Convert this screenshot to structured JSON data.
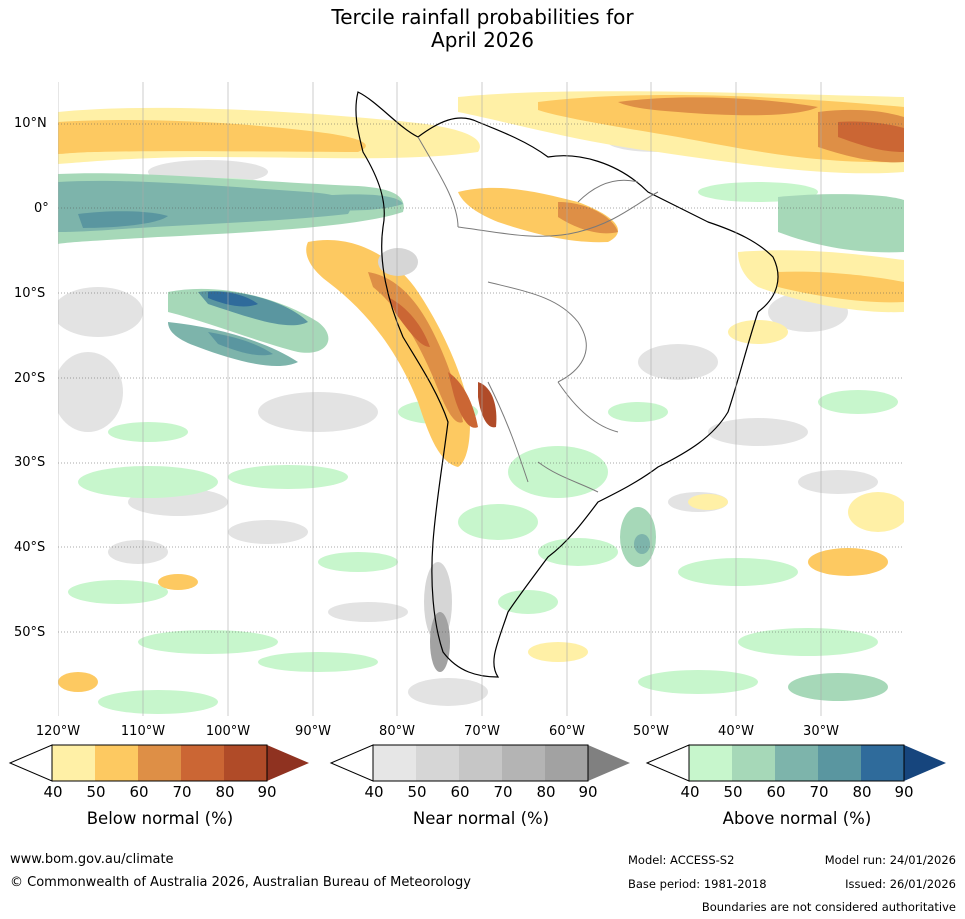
{
  "title": {
    "line1": "Tercile rainfall probabilities for",
    "line2": "April 2026"
  },
  "map": {
    "region": "South America",
    "lat_labels": [
      "10°N",
      "0°",
      "10°S",
      "20°S",
      "30°S",
      "40°S",
      "50°S"
    ],
    "lon_labels": [
      "120°W",
      "110°W",
      "100°W",
      "90°W",
      "80°W",
      "70°W",
      "60°W",
      "50°W",
      "40°W",
      "30°W"
    ]
  },
  "colorbars": [
    {
      "id": "below",
      "title": "Below normal (%)",
      "ticks": [
        "40",
        "50",
        "60",
        "70",
        "80",
        "90"
      ],
      "colors": [
        "#fff0a6",
        "#fdc961",
        "#de8f46",
        "#cb6634",
        "#b04b28",
        "#8f3220"
      ]
    },
    {
      "id": "near",
      "title": "Near normal (%)",
      "ticks": [
        "40",
        "50",
        "60",
        "70",
        "80",
        "90"
      ],
      "colors": [
        "#e6e6e6",
        "#d6d6d6",
        "#c6c6c6",
        "#b4b4b4",
        "#a2a2a2",
        "#808080"
      ]
    },
    {
      "id": "above",
      "title": "Above normal (%)",
      "ticks": [
        "40",
        "50",
        "60",
        "70",
        "80",
        "90"
      ],
      "colors": [
        "#c7f6cc",
        "#a6d8b8",
        "#7db4ab",
        "#5a96a0",
        "#2f6b9b",
        "#16457d"
      ]
    }
  ],
  "footer": {
    "website": "www.bom.gov.au/climate",
    "copyright": "© Commonwealth of Australia 2026, Australian Bureau of Meteorology",
    "model": "Model: ACCESS-S2",
    "model_run": "Model run: 24/01/2026",
    "base_period": "Base period: 1981-2018",
    "issued": "Issued: 26/01/2026",
    "disclaimer": "Boundaries are not considered authoritative"
  }
}
